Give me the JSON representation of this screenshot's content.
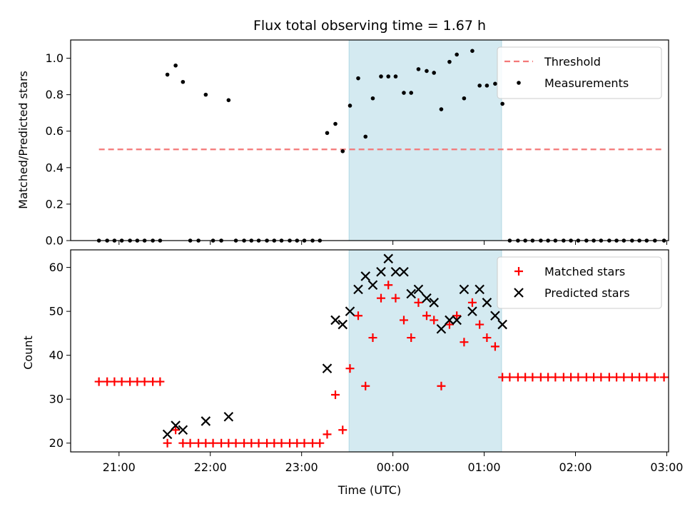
{
  "chart_data": {
    "title": "Flux total observing time = 1.67 h",
    "xlabel": "Time (UTC)",
    "x_ticks": [
      "21:00",
      "22:00",
      "23:00",
      "00:00",
      "01:00",
      "02:00",
      "03:00"
    ],
    "x_tick_values": [
      21.0,
      22.0,
      23.0,
      24.0,
      25.0,
      26.0,
      27.0
    ],
    "x_range": [
      20.47,
      27.02
    ],
    "highlight_span": [
      23.52,
      25.19
    ],
    "panels": [
      {
        "type": "scatter",
        "ylabel": "Matched/Predicted stars",
        "ylim": [
          0,
          1.1
        ],
        "y_ticks": [
          "0.0",
          "0.2",
          "0.4",
          "0.6",
          "0.8",
          "1.0"
        ],
        "y_tick_values": [
          0,
          0.2,
          0.4,
          0.6,
          0.8,
          1.0
        ],
        "legend_position": "top-right",
        "threshold": {
          "name": "Threshold",
          "value": 0.5,
          "x_range": [
            20.78,
            26.95
          ],
          "color": "#f47878"
        },
        "series": [
          {
            "name": "Measurements",
            "color": "#000000",
            "marker": "dot",
            "points": [
              [
                20.78,
                0
              ],
              [
                20.87,
                0
              ],
              [
                20.95,
                0
              ],
              [
                21.03,
                0
              ],
              [
                21.12,
                0
              ],
              [
                21.2,
                0
              ],
              [
                21.28,
                0
              ],
              [
                21.37,
                0
              ],
              [
                21.45,
                0
              ],
              [
                21.53,
                0.91
              ],
              [
                21.62,
                0.96
              ],
              [
                21.7,
                0.87
              ],
              [
                21.78,
                0
              ],
              [
                21.87,
                0
              ],
              [
                21.95,
                0.8
              ],
              [
                22.03,
                0
              ],
              [
                22.12,
                0
              ],
              [
                22.2,
                0.77
              ],
              [
                22.28,
                0
              ],
              [
                22.37,
                0
              ],
              [
                22.45,
                0
              ],
              [
                22.53,
                0
              ],
              [
                22.62,
                0
              ],
              [
                22.7,
                0
              ],
              [
                22.78,
                0
              ],
              [
                22.87,
                0
              ],
              [
                22.95,
                0
              ],
              [
                23.03,
                0
              ],
              [
                23.12,
                0
              ],
              [
                23.2,
                0
              ],
              [
                23.28,
                0.59
              ],
              [
                23.37,
                0.64
              ],
              [
                23.45,
                0.49
              ],
              [
                23.53,
                0.74
              ],
              [
                23.62,
                0.89
              ],
              [
                23.7,
                0.57
              ],
              [
                23.78,
                0.78
              ],
              [
                23.87,
                0.9
              ],
              [
                23.95,
                0.9
              ],
              [
                24.03,
                0.9
              ],
              [
                24.12,
                0.81
              ],
              [
                24.2,
                0.81
              ],
              [
                24.28,
                0.94
              ],
              [
                24.37,
                0.93
              ],
              [
                24.45,
                0.92
              ],
              [
                24.53,
                0.72
              ],
              [
                24.62,
                0.98
              ],
              [
                24.7,
                1.02
              ],
              [
                24.78,
                0.78
              ],
              [
                24.87,
                1.04
              ],
              [
                24.95,
                0.85
              ],
              [
                25.03,
                0.85
              ],
              [
                25.12,
                0.86
              ],
              [
                25.2,
                0.75
              ],
              [
                25.28,
                0
              ],
              [
                25.37,
                0
              ],
              [
                25.45,
                0
              ],
              [
                25.53,
                0
              ],
              [
                25.62,
                0
              ],
              [
                25.7,
                0
              ],
              [
                25.78,
                0
              ],
              [
                25.87,
                0
              ],
              [
                25.95,
                0
              ],
              [
                26.03,
                0
              ],
              [
                26.12,
                0
              ],
              [
                26.2,
                0
              ],
              [
                26.28,
                0
              ],
              [
                26.37,
                0
              ],
              [
                26.45,
                0
              ],
              [
                26.53,
                0
              ],
              [
                26.62,
                0
              ],
              [
                26.7,
                0
              ],
              [
                26.78,
                0
              ],
              [
                26.87,
                0
              ],
              [
                26.97,
                0
              ]
            ]
          }
        ]
      },
      {
        "type": "scatter",
        "ylabel": "Count",
        "ylim": [
          18,
          64
        ],
        "y_ticks": [
          "20",
          "30",
          "40",
          "50",
          "60"
        ],
        "y_tick_values": [
          20,
          30,
          40,
          50,
          60
        ],
        "legend_position": "top-right",
        "series": [
          {
            "name": "Matched stars",
            "color": "#ff0000",
            "marker": "plus",
            "points": [
              [
                20.78,
                34
              ],
              [
                20.87,
                34
              ],
              [
                20.95,
                34
              ],
              [
                21.03,
                34
              ],
              [
                21.12,
                34
              ],
              [
                21.2,
                34
              ],
              [
                21.28,
                34
              ],
              [
                21.37,
                34
              ],
              [
                21.45,
                34
              ],
              [
                21.53,
                20
              ],
              [
                21.62,
                23
              ],
              [
                21.7,
                20
              ],
              [
                21.78,
                20
              ],
              [
                21.87,
                20
              ],
              [
                21.95,
                20
              ],
              [
                22.03,
                20
              ],
              [
                22.12,
                20
              ],
              [
                22.2,
                20
              ],
              [
                22.28,
                20
              ],
              [
                22.37,
                20
              ],
              [
                22.45,
                20
              ],
              [
                22.53,
                20
              ],
              [
                22.62,
                20
              ],
              [
                22.7,
                20
              ],
              [
                22.78,
                20
              ],
              [
                22.87,
                20
              ],
              [
                22.95,
                20
              ],
              [
                23.03,
                20
              ],
              [
                23.12,
                20
              ],
              [
                23.2,
                20
              ],
              [
                23.28,
                22
              ],
              [
                23.37,
                31
              ],
              [
                23.45,
                23
              ],
              [
                23.53,
                37
              ],
              [
                23.62,
                49
              ],
              [
                23.7,
                33
              ],
              [
                23.78,
                44
              ],
              [
                23.87,
                53
              ],
              [
                23.95,
                56
              ],
              [
                24.03,
                53
              ],
              [
                24.12,
                48
              ],
              [
                24.2,
                44
              ],
              [
                24.28,
                52
              ],
              [
                24.37,
                49
              ],
              [
                24.45,
                48
              ],
              [
                24.53,
                33
              ],
              [
                24.62,
                47
              ],
              [
                24.7,
                49
              ],
              [
                24.78,
                43
              ],
              [
                24.87,
                52
              ],
              [
                24.95,
                47
              ],
              [
                25.03,
                44
              ],
              [
                25.12,
                42
              ],
              [
                25.2,
                35
              ],
              [
                25.28,
                35
              ],
              [
                25.37,
                35
              ],
              [
                25.45,
                35
              ],
              [
                25.53,
                35
              ],
              [
                25.62,
                35
              ],
              [
                25.7,
                35
              ],
              [
                25.78,
                35
              ],
              [
                25.87,
                35
              ],
              [
                25.95,
                35
              ],
              [
                26.03,
                35
              ],
              [
                26.12,
                35
              ],
              [
                26.2,
                35
              ],
              [
                26.28,
                35
              ],
              [
                26.37,
                35
              ],
              [
                26.45,
                35
              ],
              [
                26.53,
                35
              ],
              [
                26.62,
                35
              ],
              [
                26.7,
                35
              ],
              [
                26.78,
                35
              ],
              [
                26.87,
                35
              ],
              [
                26.97,
                35
              ]
            ]
          },
          {
            "name": "Predicted stars",
            "color": "#000000",
            "marker": "x",
            "points": [
              [
                21.53,
                22
              ],
              [
                21.62,
                24
              ],
              [
                21.7,
                23
              ],
              [
                21.95,
                25
              ],
              [
                22.2,
                26
              ],
              [
                23.28,
                37
              ],
              [
                23.37,
                48
              ],
              [
                23.45,
                47
              ],
              [
                23.53,
                50
              ],
              [
                23.62,
                55
              ],
              [
                23.7,
                58
              ],
              [
                23.78,
                56
              ],
              [
                23.87,
                59
              ],
              [
                23.95,
                62
              ],
              [
                24.03,
                59
              ],
              [
                24.12,
                59
              ],
              [
                24.2,
                54
              ],
              [
                24.28,
                55
              ],
              [
                24.37,
                53
              ],
              [
                24.45,
                52
              ],
              [
                24.53,
                46
              ],
              [
                24.62,
                48
              ],
              [
                24.7,
                48
              ],
              [
                24.78,
                55
              ],
              [
                24.87,
                50
              ],
              [
                24.95,
                55
              ],
              [
                25.03,
                52
              ],
              [
                25.12,
                49
              ],
              [
                25.2,
                47
              ]
            ]
          }
        ]
      }
    ]
  },
  "colors": {
    "highlight_fill": "#d4eaf1",
    "highlight_edge": "#b0d8e4"
  }
}
